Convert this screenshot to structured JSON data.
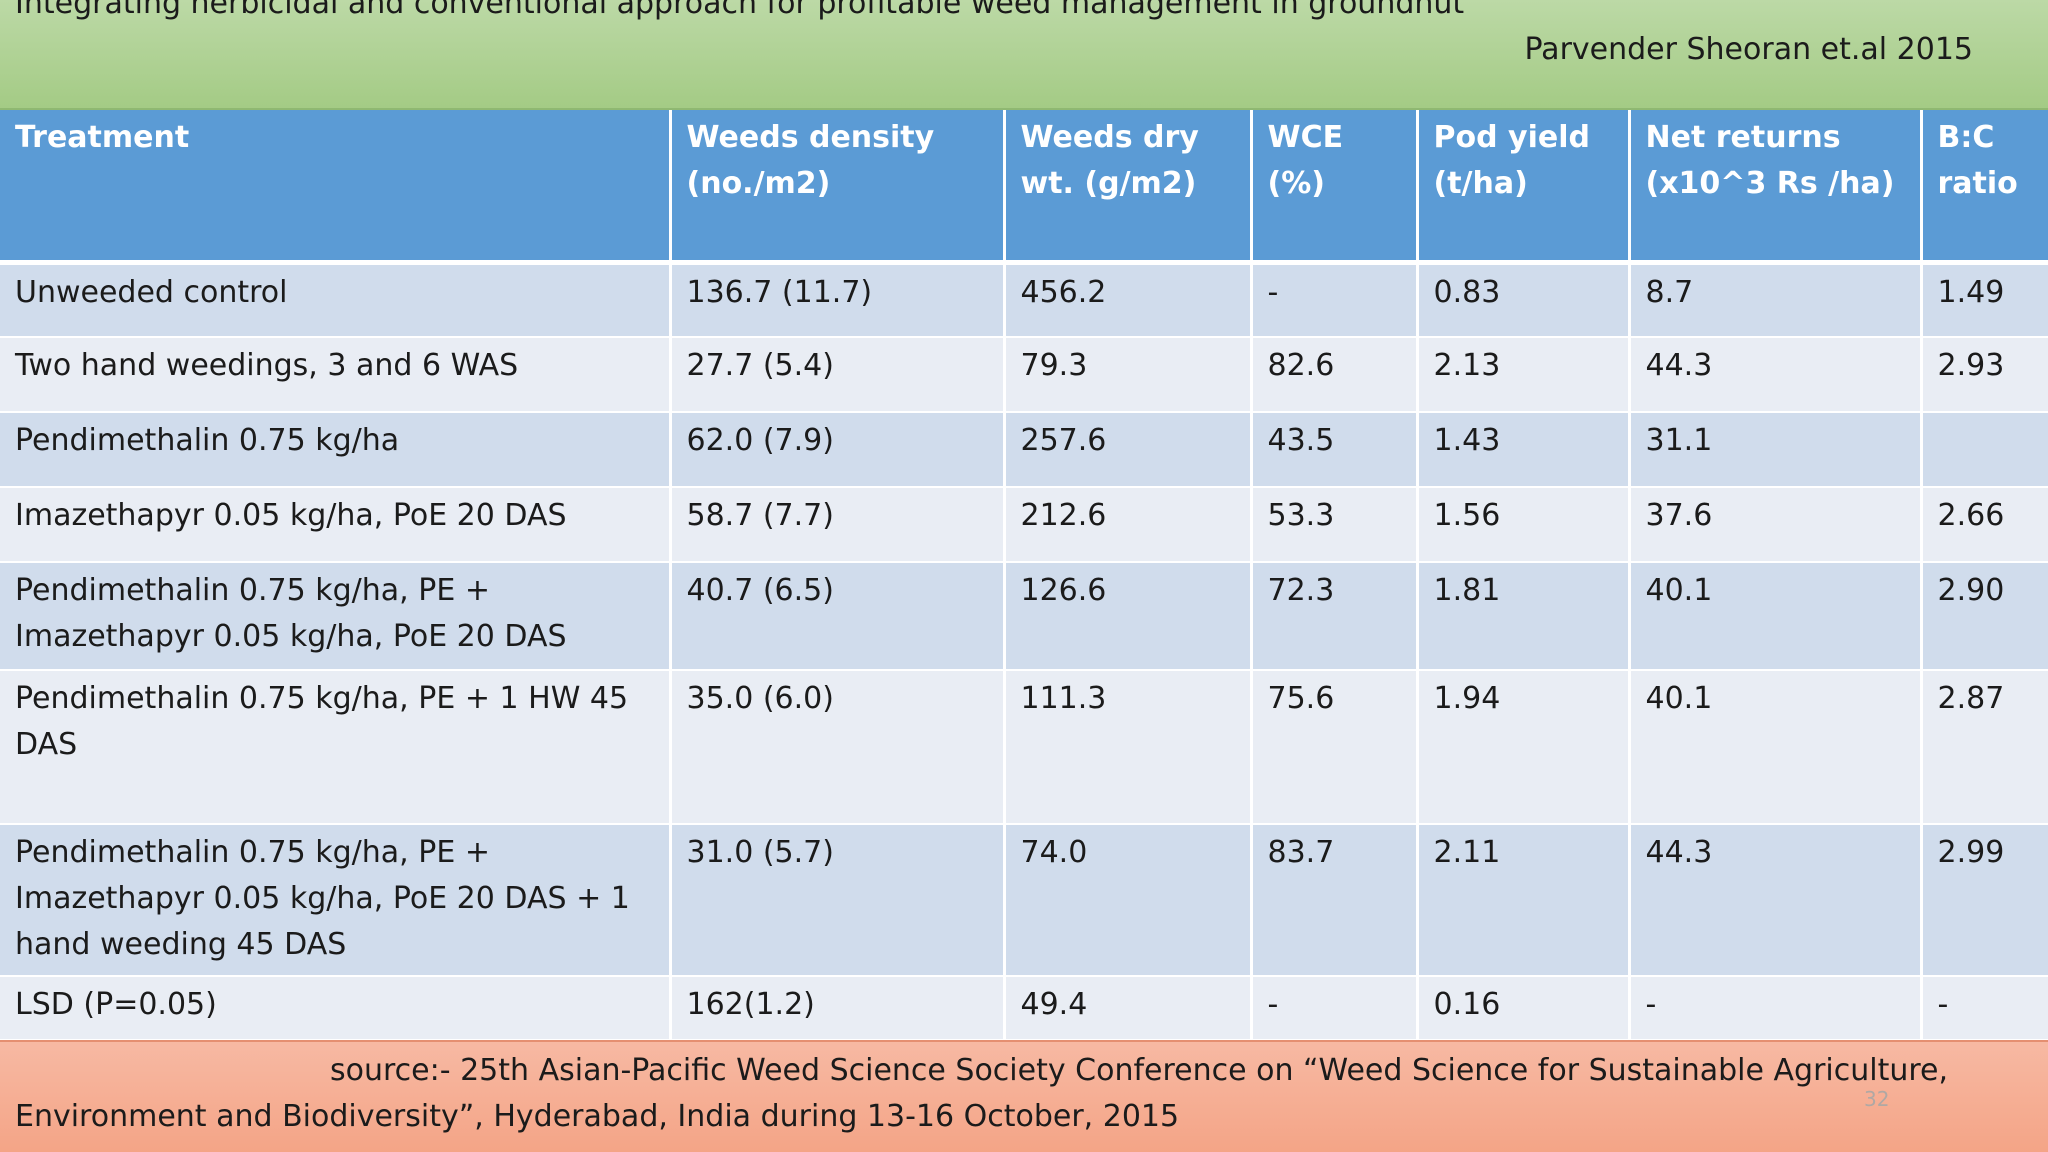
{
  "header": {
    "title": "Integrating herbicidal and conventional approach for profitable weed management in groundnut",
    "author": "Parvender Sheoran et.al 2015"
  },
  "table": {
    "columns": [
      "Treatment",
      "Weeds density (no./m2)",
      "Weeds dry wt. (g/m2)",
      "WCE (%)",
      "Pod yield (t/ha)",
      "Net returns (x10^3 Rs /ha)",
      "B:C ratio"
    ],
    "rows": [
      [
        "Unweeded control",
        "136.7 (11.7)",
        "456.2",
        "-",
        "0.83",
        "8.7",
        "1.49"
      ],
      [
        "Two hand weedings, 3 and 6 WAS",
        "27.7 (5.4)",
        "79.3",
        "82.6",
        "2.13",
        "44.3",
        "2.93"
      ],
      [
        "Pendimethalin  0.75 kg/ha",
        "62.0 (7.9)",
        "257.6",
        "43.5",
        "1.43",
        "31.1",
        ""
      ],
      [
        "Imazethapyr 0.05 kg/ha, PoE 20 DAS",
        "58.7 (7.7)",
        "212.6",
        "53.3",
        "1.56",
        "37.6",
        "2.66"
      ],
      [
        "Pendimethalin 0.75 kg/ha, PE + Imazethapyr 0.05 kg/ha, PoE 20 DAS",
        "40.7 (6.5)",
        "126.6",
        "72.3",
        "1.81",
        "40.1",
        "2.90"
      ],
      [
        "Pendimethalin 0.75 kg/ha, PE + 1 HW 45 DAS",
        "35.0 (6.0)",
        "111.3",
        "75.6",
        "1.94",
        "40.1",
        "2.87"
      ],
      [
        "Pendimethalin 0.75 kg/ha, PE + Imazethapyr 0.05 kg/ha, PoE 20 DAS + 1 hand weeding 45 DAS",
        "31.0 (5.7)",
        "74.0",
        "83.7",
        "2.11",
        "44.3",
        "2.99"
      ],
      [
        "LSD (P=0.05)",
        "162(1.2)",
        "49.4",
        "-",
        "0.16",
        "-",
        "-"
      ]
    ]
  },
  "footer": {
    "source": "source:-    25th Asian-Pacific Weed Science Society Conference on “Weed Science for Sustainable Agriculture, Environment and Biodiversity”, Hyderabad, India during 13-16 October, 2015",
    "page_number": "32"
  },
  "colors": {
    "title_bar": "#a9cf8c",
    "header_row": "#5b9bd5",
    "row_dark": "#d0dcec",
    "row_light": "#e9edf4",
    "footer_bar": "#f5ab8f"
  }
}
